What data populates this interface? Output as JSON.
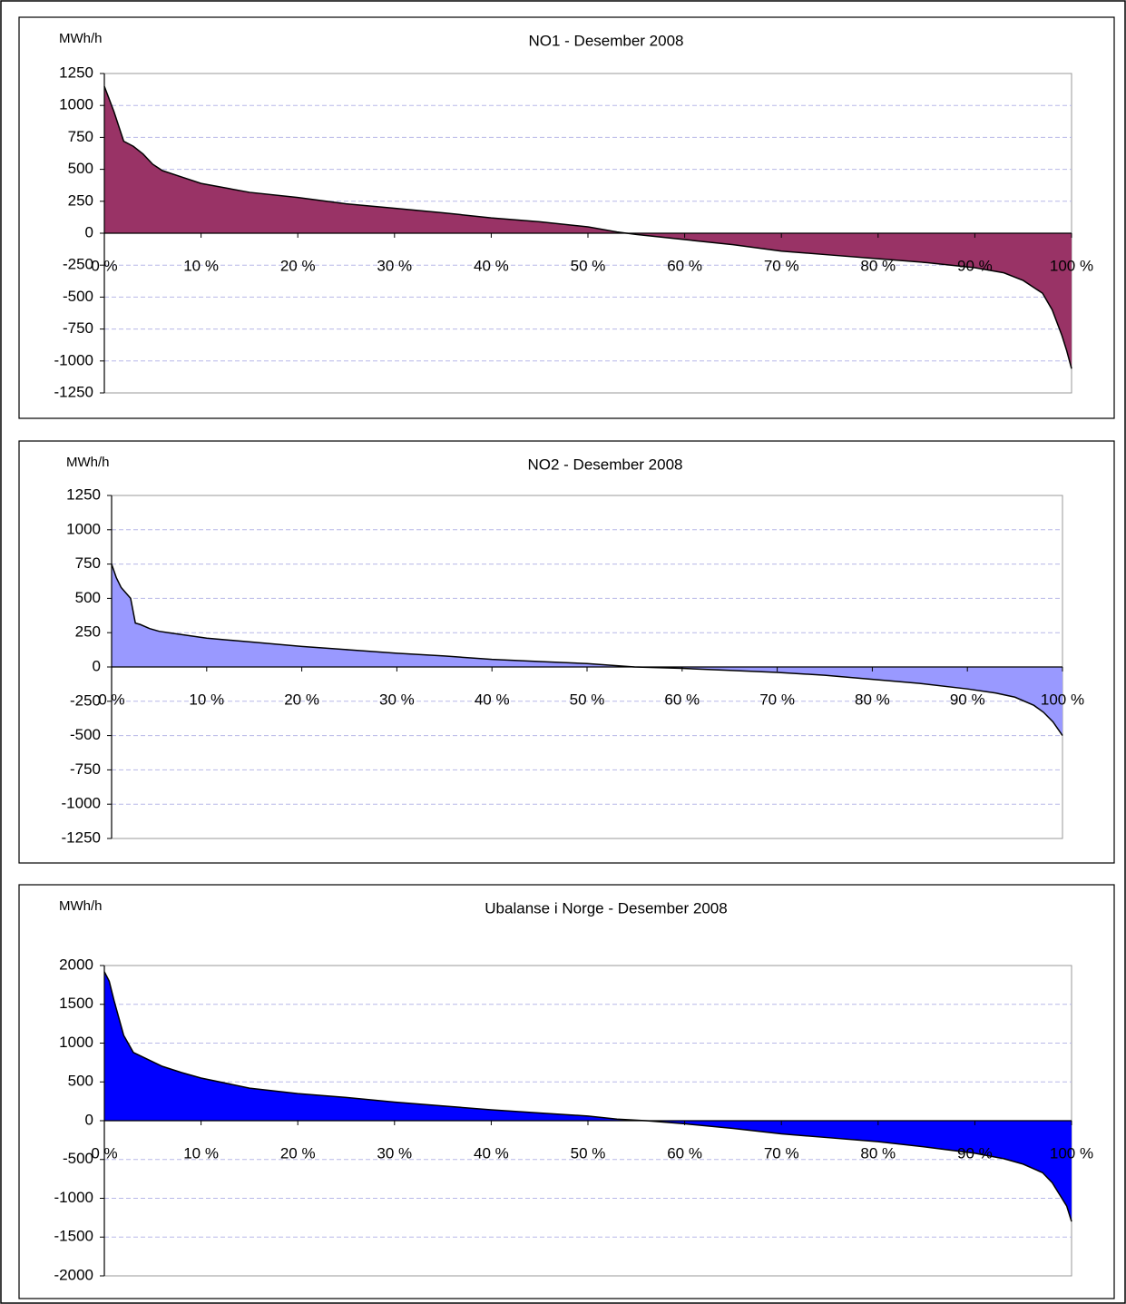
{
  "chart_data": [
    {
      "type": "area",
      "title": "NO1 - Desember 2008",
      "y_label": "MWh/h",
      "color": "#993366",
      "x": [
        0,
        0.5,
        1,
        2,
        3,
        4,
        5,
        6,
        8,
        10,
        15,
        20,
        25,
        30,
        35,
        40,
        45,
        50,
        53,
        55,
        60,
        65,
        70,
        75,
        80,
        85,
        90,
        93,
        95,
        97,
        98,
        99,
        99.5,
        100
      ],
      "values": [
        1150,
        1050,
        950,
        720,
        680,
        620,
        540,
        490,
        440,
        390,
        320,
        280,
        230,
        195,
        160,
        120,
        90,
        50,
        10,
        -10,
        -50,
        -90,
        -140,
        -170,
        -200,
        -230,
        -270,
        -310,
        -370,
        -470,
        -600,
        -800,
        -920,
        -1060
      ],
      "xlim": [
        0,
        100
      ],
      "xticks": [
        {
          "value": 0,
          "label": "0 %"
        },
        {
          "value": 10,
          "label": "10 %"
        },
        {
          "value": 20,
          "label": "20 %"
        },
        {
          "value": 30,
          "label": "30 %"
        },
        {
          "value": 40,
          "label": "40 %"
        },
        {
          "value": 50,
          "label": "50 %"
        },
        {
          "value": 60,
          "label": "60 %"
        },
        {
          "value": 70,
          "label": "70 %"
        },
        {
          "value": 80,
          "label": "80 %"
        },
        {
          "value": 90,
          "label": "90 %"
        },
        {
          "value": 100,
          "label": "100 %"
        }
      ],
      "ylim": [
        -1250,
        1250
      ],
      "yticks": [
        -1250,
        -1000,
        -750,
        -500,
        -250,
        0,
        250,
        500,
        750,
        1000,
        1250
      ],
      "grid": true
    },
    {
      "type": "area",
      "title": "NO2 - Desember 2008",
      "y_label": "MWh/h",
      "color": "#9999ff",
      "x": [
        0,
        0.5,
        1,
        2,
        2.5,
        3,
        4,
        5,
        6,
        8,
        10,
        15,
        20,
        25,
        30,
        35,
        40,
        45,
        50,
        55,
        60,
        65,
        70,
        75,
        80,
        85,
        90,
        93,
        95,
        97,
        98,
        99,
        100
      ],
      "values": [
        750,
        650,
        580,
        500,
        320,
        310,
        280,
        260,
        250,
        230,
        210,
        180,
        150,
        125,
        100,
        80,
        55,
        40,
        25,
        0,
        -10,
        -25,
        -40,
        -60,
        -90,
        -120,
        -160,
        -190,
        -220,
        -280,
        -330,
        -400,
        -500
      ],
      "xlim": [
        0,
        100
      ],
      "xticks": [
        {
          "value": 0,
          "label": "0 %"
        },
        {
          "value": 10,
          "label": "10 %"
        },
        {
          "value": 20,
          "label": "20 %"
        },
        {
          "value": 30,
          "label": "30 %"
        },
        {
          "value": 40,
          "label": "40 %"
        },
        {
          "value": 50,
          "label": "50 %"
        },
        {
          "value": 60,
          "label": "60 %"
        },
        {
          "value": 70,
          "label": "70 %"
        },
        {
          "value": 80,
          "label": "80 %"
        },
        {
          "value": 90,
          "label": "90 %"
        },
        {
          "value": 100,
          "label": "100 %"
        }
      ],
      "ylim": [
        -1250,
        1250
      ],
      "yticks": [
        -1250,
        -1000,
        -750,
        -500,
        -250,
        0,
        250,
        500,
        750,
        1000,
        1250
      ],
      "grid": true
    },
    {
      "type": "area",
      "title": "Ubalanse i Norge - Desember 2008",
      "y_label": "MWh/h",
      "color": "#0000ff",
      "x": [
        0,
        0.5,
        1,
        2,
        3,
        4,
        5,
        6,
        8,
        10,
        15,
        20,
        25,
        30,
        35,
        40,
        45,
        50,
        53,
        56,
        60,
        65,
        70,
        75,
        80,
        85,
        90,
        93,
        95,
        97,
        98,
        99,
        99.5,
        100
      ],
      "values": [
        1920,
        1800,
        1550,
        1100,
        880,
        820,
        760,
        700,
        620,
        550,
        420,
        350,
        300,
        240,
        190,
        140,
        100,
        60,
        20,
        0,
        -40,
        -100,
        -170,
        -220,
        -270,
        -340,
        -420,
        -490,
        -560,
        -670,
        -800,
        -1000,
        -1100,
        -1300
      ],
      "xlim": [
        0,
        100
      ],
      "xticks": [
        {
          "value": 0,
          "label": "0 %"
        },
        {
          "value": 10,
          "label": "10 %"
        },
        {
          "value": 20,
          "label": "20 %"
        },
        {
          "value": 30,
          "label": "30 %"
        },
        {
          "value": 40,
          "label": "40 %"
        },
        {
          "value": 50,
          "label": "50 %"
        },
        {
          "value": 60,
          "label": "60 %"
        },
        {
          "value": 70,
          "label": "70 %"
        },
        {
          "value": 80,
          "label": "80 %"
        },
        {
          "value": 90,
          "label": "90 %"
        },
        {
          "value": 100,
          "label": "100 %"
        }
      ],
      "ylim": [
        -2000,
        2000
      ],
      "yticks": [
        -2000,
        -1500,
        -1000,
        -500,
        0,
        500,
        1000,
        1500,
        2000
      ],
      "grid": true
    }
  ]
}
